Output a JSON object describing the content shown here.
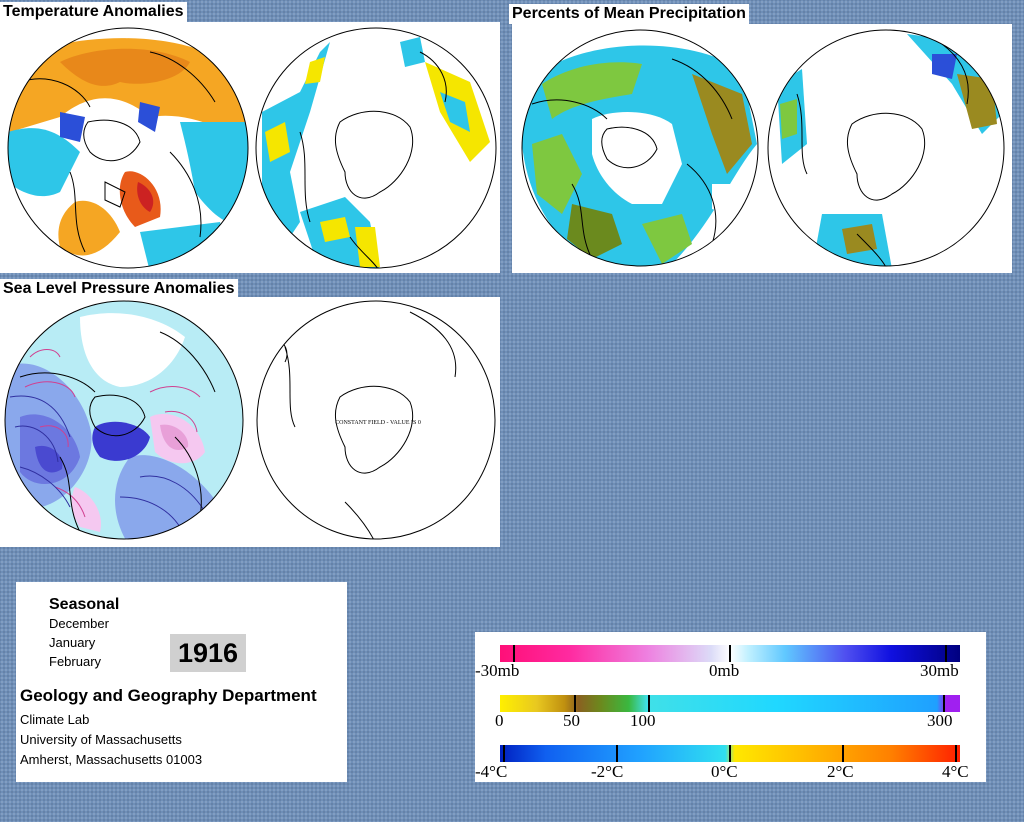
{
  "panels": {
    "temperature_title": "Temperature Anomalies",
    "precipitation_title": "Percents of Mean Precipitation",
    "pressure_title": "Sea Level Pressure Anomalies",
    "constant_field_note": "CONSTANT FIELD - VALUE IS 0"
  },
  "info": {
    "season_label": "Seasonal",
    "months": [
      "December",
      "January",
      "February"
    ],
    "year": "1916",
    "department": "Geology and Geography Department",
    "address_lines": [
      "Climate Lab",
      "University of Massachusetts",
      "Amherst, Massachusetts 01003"
    ]
  },
  "legend": {
    "pressure": {
      "labels": [
        "-30mb",
        "0mb",
        "30mb"
      ]
    },
    "precipitation": {
      "labels": [
        "0",
        "50",
        "100",
        "300"
      ]
    },
    "temperature": {
      "labels": [
        "-4°C",
        "-2°C",
        "0°C",
        "2°C",
        "4°C"
      ]
    }
  },
  "colors": {
    "background": "#6f8fb8",
    "warm": "#f5a623",
    "cool": "#2ec6e8",
    "deep_blue": "#2b4fd8",
    "dry": "#6b8a1e",
    "pressure_low": "#5a5ae0",
    "pressure_high": "#e8a0d8"
  }
}
